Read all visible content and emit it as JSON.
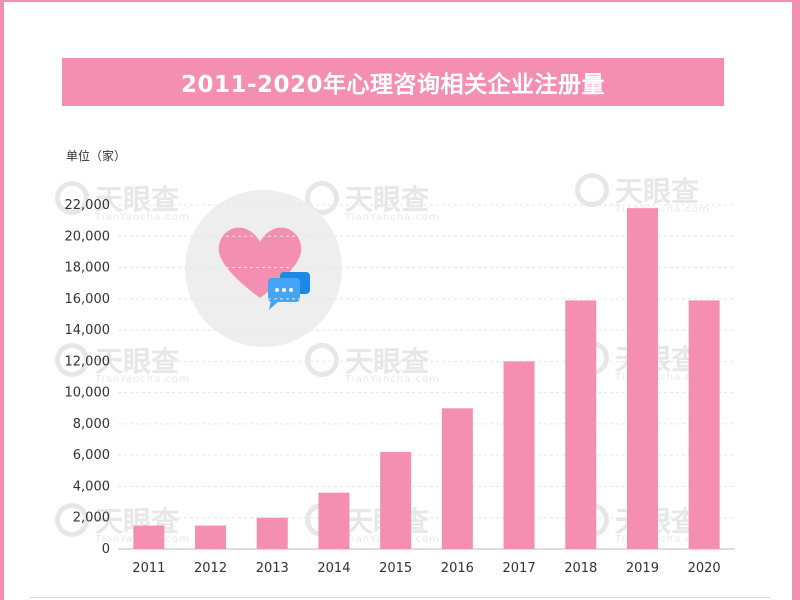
{
  "title": "2011-2020年心理咨询相关企业注册量",
  "unit_label": "单位（家）",
  "watermark": {
    "text": "天眼查",
    "sub": "TianYancha.com"
  },
  "icons": {
    "heart": "heart-icon",
    "chat": "chat-bubble-icon"
  },
  "colors": {
    "bar": "#f48fb1",
    "banner": "#f48fb1",
    "frame": "#f48fb1",
    "grid": "#e6e6e6"
  },
  "chart_data": {
    "type": "bar",
    "categories": [
      "2011",
      "2012",
      "2013",
      "2014",
      "2015",
      "2016",
      "2017",
      "2018",
      "2019",
      "2020"
    ],
    "values": [
      1500,
      1500,
      2000,
      3600,
      6200,
      9000,
      12000,
      15900,
      21800,
      15900
    ],
    "title": "2011-2020年心理咨询相关企业注册量",
    "ylabel": "单位（家）",
    "ylim": [
      0,
      22000
    ],
    "yticks": [
      0,
      2000,
      4000,
      6000,
      8000,
      10000,
      12000,
      14000,
      16000,
      18000,
      20000,
      22000
    ],
    "ytick_labels": [
      "0",
      "2,000",
      "4,000",
      "6,000",
      "8,000",
      "10,000",
      "12,000",
      "14,000",
      "16,000",
      "18,000",
      "20,000",
      "22,000"
    ],
    "grid": true,
    "legend": "none"
  }
}
